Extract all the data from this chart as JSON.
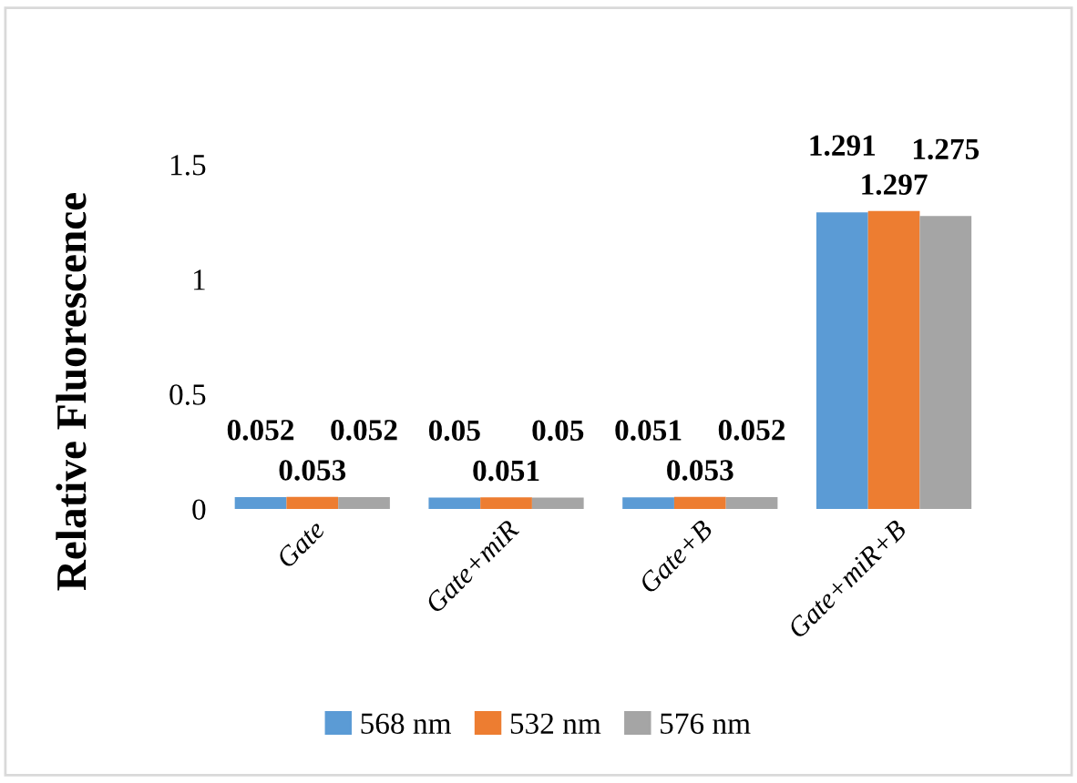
{
  "chart_data": {
    "type": "bar",
    "ylabel": "Relative Fluorescence",
    "categories": [
      "Gate",
      "Gate+miR",
      "Gate+B",
      "Gate+miR+B"
    ],
    "series": [
      {
        "name": "568 nm",
        "color": "#5b9bd5",
        "values": [
          0.052,
          0.05,
          0.051,
          1.291
        ]
      },
      {
        "name": "532 nm",
        "color": "#ed7d31",
        "values": [
          0.053,
          0.051,
          0.053,
          1.297
        ]
      },
      {
        "name": "576 nm",
        "color": "#a5a5a5",
        "values": [
          0.052,
          0.05,
          0.052,
          1.275
        ]
      }
    ],
    "ylim": [
      0,
      1.5
    ],
    "yticks": [
      0,
      0.5,
      1,
      1.5
    ],
    "grid": false,
    "legend": "bottom",
    "data_labels": true
  }
}
